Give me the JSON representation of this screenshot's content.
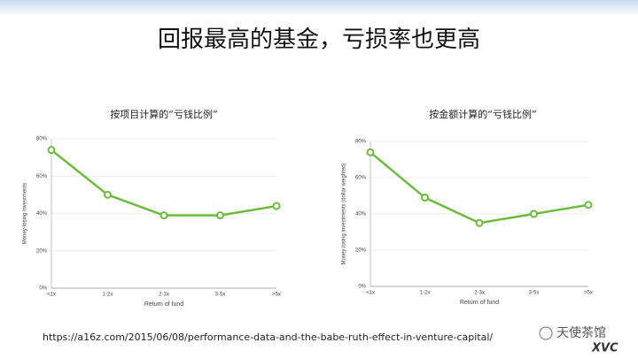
{
  "title": "回报最高的基金，亏损率也更高",
  "source_url": "https://a16z.com/2015/06/08/performance-data-and-the-babe-ruth-effect-in-venture-capital/",
  "watermark": "天使茶馆",
  "watermark_logo": "XVC",
  "chart_data": [
    {
      "type": "line",
      "title": "按项目计算的“亏钱比例”",
      "x_label": "Return of fund",
      "y_label": "Money-losing investments",
      "categories": [
        "<1x",
        "1-2x",
        "2-3x",
        "3-5x",
        ">5x"
      ],
      "values": [
        74,
        50,
        39,
        39,
        44
      ],
      "color": "#6dbb3c",
      "ylim": [
        0,
        80
      ],
      "yticks": [
        {
          "value": 0,
          "label": "0%"
        },
        {
          "value": 20,
          "label": "20%"
        },
        {
          "value": 40,
          "label": "40%"
        },
        {
          "value": 60,
          "label": "60%"
        },
        {
          "value": 80,
          "label": "80%"
        }
      ],
      "grid": true
    },
    {
      "type": "line",
      "title": "按金额计算的“亏钱比例”",
      "x_label": "Return of fund",
      "y_label": "Money losing investments (dollar weighted)",
      "categories": [
        "<1x",
        "1-2x",
        "2-3x",
        "3-5x",
        ">5x"
      ],
      "values": [
        74,
        49,
        35,
        40,
        45
      ],
      "color": "#6dbb3c",
      "ylim": [
        0,
        80
      ],
      "yticks": [
        {
          "value": 0,
          "label": "0%"
        },
        {
          "value": 20,
          "label": "20%"
        },
        {
          "value": 40,
          "label": "40%"
        },
        {
          "value": 60,
          "label": "60%"
        },
        {
          "value": 80,
          "label": "80%"
        }
      ],
      "grid": true
    }
  ]
}
